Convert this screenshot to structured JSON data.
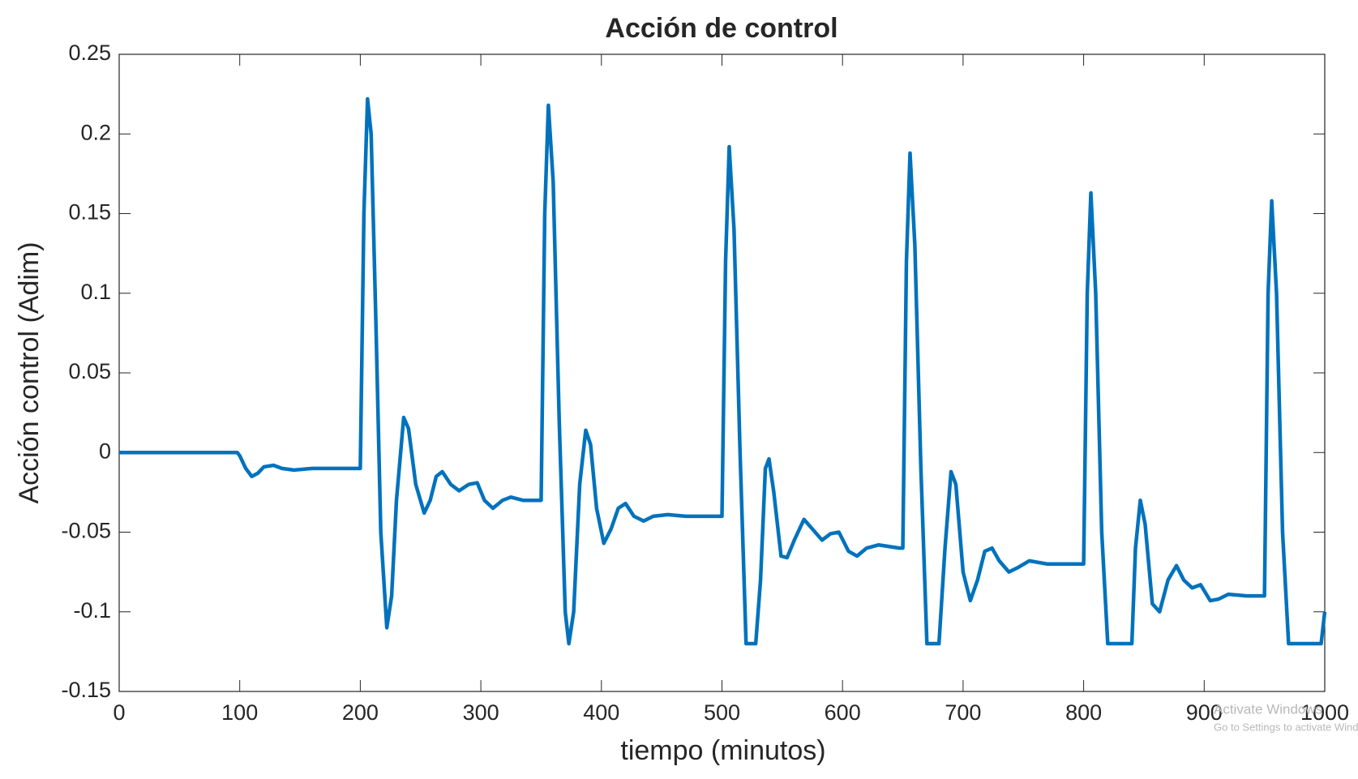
{
  "chart_data": {
    "type": "line",
    "title": "Acción de control",
    "xlabel": "tiempo (minutos)",
    "ylabel": "Acción control (Adim)",
    "x": [
      0,
      98,
      100,
      105,
      110,
      115,
      120,
      128,
      135,
      145,
      160,
      197,
      200,
      203,
      206,
      209,
      213,
      217,
      222,
      226,
      230,
      236,
      240,
      246,
      253,
      258,
      263,
      268,
      275,
      282,
      290,
      297,
      303,
      310,
      318,
      325,
      335,
      347,
      350,
      353,
      356,
      360,
      365,
      370,
      373,
      377,
      382,
      387,
      391,
      396,
      402,
      408,
      414,
      420,
      427,
      435,
      443,
      455,
      470,
      497,
      500,
      503,
      506,
      510,
      515,
      520,
      528,
      532,
      536,
      539,
      543,
      549,
      554,
      560,
      568,
      575,
      583,
      590,
      597,
      605,
      612,
      620,
      630,
      647,
      650,
      653,
      656,
      660,
      665,
      670,
      680,
      685,
      690,
      694,
      700,
      706,
      712,
      718,
      724,
      730,
      738,
      746,
      755,
      770,
      797,
      800,
      803,
      806,
      810,
      815,
      820,
      840,
      843,
      847,
      851,
      857,
      863,
      870,
      877,
      883,
      890,
      897,
      905,
      912,
      920,
      935,
      947,
      950,
      953,
      956,
      960,
      965,
      970,
      997,
      1000
    ],
    "series": [
      {
        "name": "Acción de control",
        "color": "#0072bd",
        "values": [
          0,
          0,
          -0.002,
          -0.01,
          -0.015,
          -0.013,
          -0.009,
          -0.008,
          -0.01,
          -0.011,
          -0.01,
          -0.01,
          -0.01,
          0.15,
          0.222,
          0.2,
          0.08,
          -0.05,
          -0.11,
          -0.09,
          -0.03,
          0.022,
          0.015,
          -0.02,
          -0.038,
          -0.03,
          -0.015,
          -0.012,
          -0.02,
          -0.024,
          -0.02,
          -0.019,
          -0.03,
          -0.035,
          -0.03,
          -0.028,
          -0.03,
          -0.03,
          -0.03,
          0.15,
          0.218,
          0.17,
          0.02,
          -0.1,
          -0.12,
          -0.1,
          -0.02,
          0.014,
          0.005,
          -0.035,
          -0.057,
          -0.048,
          -0.035,
          -0.032,
          -0.04,
          -0.043,
          -0.04,
          -0.039,
          -0.04,
          -0.04,
          -0.04,
          0.12,
          0.192,
          0.14,
          0,
          -0.12,
          -0.12,
          -0.08,
          -0.01,
          -0.004,
          -0.025,
          -0.065,
          -0.066,
          -0.055,
          -0.042,
          -0.048,
          -0.055,
          -0.051,
          -0.05,
          -0.062,
          -0.065,
          -0.06,
          -0.058,
          -0.06,
          -0.06,
          0.12,
          0.188,
          0.13,
          -0.01,
          -0.12,
          -0.12,
          -0.06,
          -0.012,
          -0.02,
          -0.075,
          -0.093,
          -0.08,
          -0.062,
          -0.06,
          -0.068,
          -0.075,
          -0.072,
          -0.068,
          -0.07,
          -0.07,
          -0.07,
          0.1,
          0.163,
          0.1,
          -0.05,
          -0.12,
          -0.12,
          -0.06,
          -0.03,
          -0.045,
          -0.095,
          -0.1,
          -0.08,
          -0.071,
          -0.08,
          -0.085,
          -0.083,
          -0.093,
          -0.092,
          -0.089,
          -0.09,
          -0.09,
          -0.09,
          0.1,
          0.158,
          0.1,
          -0.05,
          -0.12,
          -0.12,
          -0.1
        ]
      }
    ],
    "xlim": [
      0,
      1000
    ],
    "xticks": [
      0,
      100,
      200,
      300,
      400,
      500,
      600,
      700,
      800,
      900,
      1000
    ],
    "ylim": [
      -0.15,
      0.25
    ],
    "yticks": [
      -0.15,
      -0.1,
      -0.05,
      0,
      0.05,
      0.1,
      0.15,
      0.2,
      0.25
    ]
  },
  "overlay": {
    "line1": "Activate Windows",
    "line2": "Go to Settings to activate Windows."
  }
}
